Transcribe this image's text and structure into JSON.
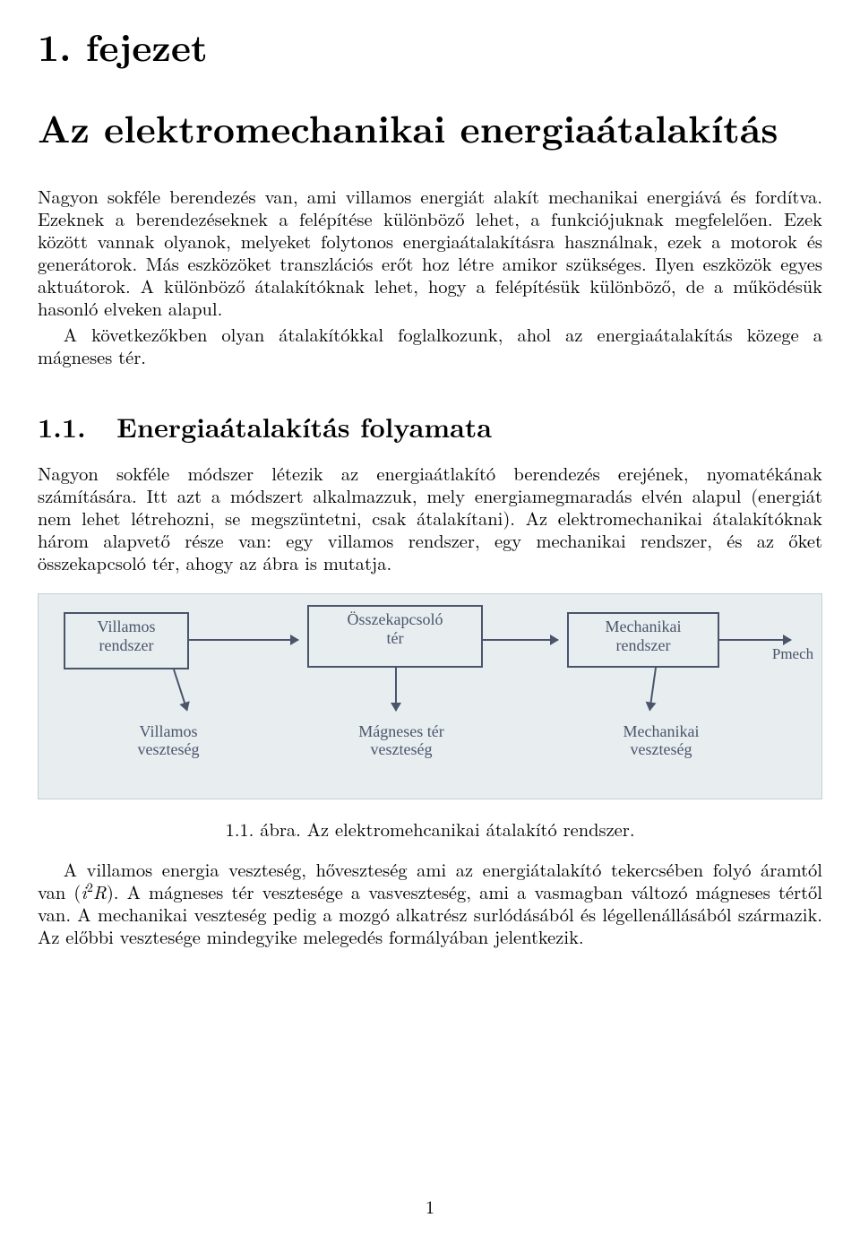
{
  "chapter": {
    "label": "1. fejezet",
    "title": "Az elektromechanikai energiaátalakítás"
  },
  "intro": {
    "p1": "Nagyon sokféle berendezés van, ami villamos energiát alakít mechanikai energiává és fordítva. Ezeknek a berendezéseknek a felépítése különböző lehet, a funkciójuknak megfelelően. Ezek között vannak olyanok, melyeket folytonos energiaátalakításra használnak, ezek a motorok és generátorok. Más eszközöket transzlációs erőt hoz létre amikor szükséges. Ilyen eszközök egyes aktuátorok. A különböző átalakítóknak lehet, hogy a felépítésük különböző, de a működésük hasonló elveken alapul.",
    "p2": "A következőkben olyan átalakítókkal foglalkozunk, ahol az energiaátalakítás közege a mágneses tér."
  },
  "section11": {
    "number": "1.1.",
    "title": "Energiaátalakítás folyamata",
    "p1": "Nagyon sokféle módszer létezik az energiaátlakító berendezés erejének, nyomatékának számítására. Itt azt a módszert alkalmazzuk, mely energiamegmaradás elvén alapul (energiát nem lehet létrehozni, se megszüntetni, csak átalakítani). Az elektromechanikai átalakítóknak három alapvető része van: egy villamos rendszer, egy mechanikai rendszer, és az őket összekapcsoló tér, ahogy az ábra is mutatja."
  },
  "figure": {
    "background": "#e8edf0",
    "ink": "#4a556b",
    "font_family": "Comic Sans MS",
    "box1": "Villamos\nrendszer",
    "box2": "Összekapcsoló\ntér",
    "box3": "Mechanikai\nrendszer",
    "out_label": "Pmech",
    "loss1": "Villamos\nveszteség",
    "loss2": "Mágneses tér\nveszteség",
    "loss3": "Mechanikai\nveszteség",
    "caption": "1.1. ábra. Az elektromehcanikai átalakító rendszer."
  },
  "after_fig": {
    "p1_pre": "A villamos energia veszteség, hőveszteség ami az energiátalakító tekercsében folyó áramtól van (",
    "p1_i": "i",
    "p1_sup": "2",
    "p1_R": "R",
    "p1_post": "). A mágneses tér vesztesége a vasveszteség, ami a vasmagban változó mágneses tértől van. A mechanikai veszteség pedig a mozgó alkatrész surlódásából és légellenállásából származik. Az előbbi vesztesége mindegyike melegedés formályában jelentkezik."
  },
  "page_number": "1"
}
